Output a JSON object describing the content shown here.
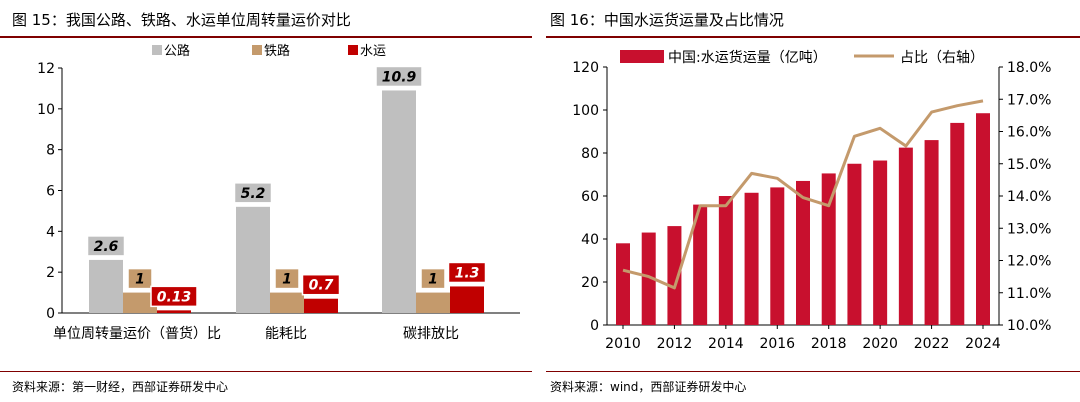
{
  "left": {
    "title": "图 15：我国公路、铁路、水运单位周转量运价对比",
    "source": "资料来源：第一财经，西部证券研发中心",
    "chart_data": {
      "type": "bar",
      "categories": [
        "单位周转量运价（普货）比",
        "能耗比",
        "碳排放比"
      ],
      "series": [
        {
          "name": "公路",
          "color": "#bfbfbf",
          "values": [
            2.6,
            5.2,
            10.9
          ],
          "labels": [
            "2.6",
            "5.2",
            "10.9"
          ]
        },
        {
          "name": "铁路",
          "color": "#c49a6c",
          "values": [
            1,
            1,
            1
          ],
          "labels": [
            "1",
            "1",
            "1"
          ]
        },
        {
          "name": "水运",
          "color": "#c00000",
          "values": [
            0.13,
            0.7,
            1.3
          ],
          "labels": [
            "0.13",
            "0.7",
            "1.3"
          ]
        }
      ],
      "ylim": [
        0,
        12
      ],
      "yticks": [
        "0",
        "2",
        "4",
        "6",
        "8",
        "10",
        "12"
      ],
      "legend_position": "top-center",
      "grid": false
    }
  },
  "right": {
    "title": "图 16：中国水运货运量及占比情况",
    "source": "资料来源：wind，西部证券研发中心",
    "chart_data": {
      "type": "bar+line",
      "x": [
        2010,
        2011,
        2012,
        2013,
        2014,
        2015,
        2016,
        2017,
        2018,
        2019,
        2020,
        2021,
        2022,
        2023,
        2024
      ],
      "xticks": [
        "2010",
        "2012",
        "2014",
        "2016",
        "2018",
        "2020",
        "2022",
        "2024"
      ],
      "series": [
        {
          "name": "中国:水运货运量（亿吨）",
          "type": "bar",
          "axis": "left",
          "color": "#c8102e",
          "values": [
            38,
            43,
            46,
            56,
            60,
            61.5,
            64,
            67,
            70.5,
            75,
            76.5,
            82.5,
            86,
            94,
            98.5
          ]
        },
        {
          "name": "占比（右轴）",
          "type": "line",
          "axis": "right",
          "color": "#c49a6c",
          "values": [
            11.7,
            11.5,
            11.15,
            13.7,
            13.7,
            14.7,
            14.55,
            13.95,
            13.7,
            15.85,
            16.1,
            15.55,
            16.6,
            16.8,
            16.95
          ]
        }
      ],
      "ylim_left": [
        0,
        120
      ],
      "yticks_left": [
        "0",
        "20",
        "40",
        "60",
        "80",
        "100",
        "120"
      ],
      "ylim_right": [
        10,
        18
      ],
      "yticks_right": [
        "10.0%",
        "11.0%",
        "12.0%",
        "13.0%",
        "14.0%",
        "15.0%",
        "16.0%",
        "17.0%",
        "18.0%"
      ],
      "legend_position": "top",
      "grid": false
    }
  }
}
